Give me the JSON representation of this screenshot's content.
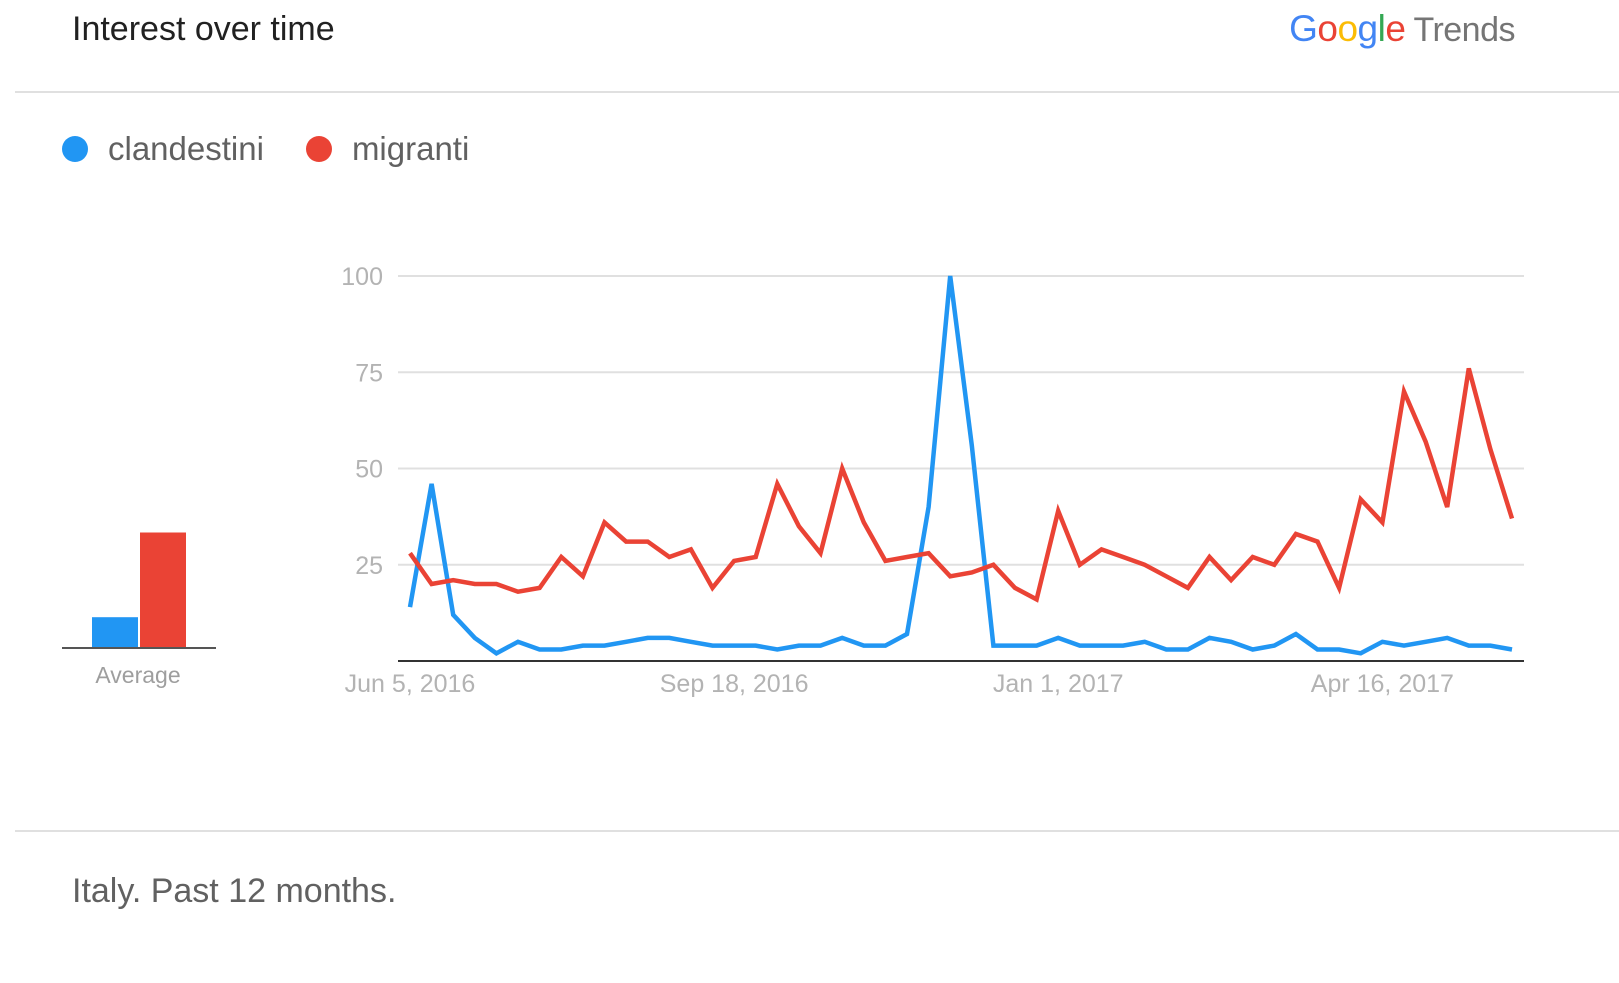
{
  "header": {
    "title": "Interest over time",
    "brand_google": "Google",
    "brand_trends": "Trends"
  },
  "legend": [
    {
      "label": "clandestini",
      "color": "#2196f3"
    },
    {
      "label": "migranti",
      "color": "#ea4335"
    }
  ],
  "footer": {
    "text": "Italy. Past 12 months."
  },
  "chart_data": {
    "type": "line",
    "title": "",
    "xlabel": "",
    "ylabel": "",
    "ylim": [
      0,
      100
    ],
    "yticks": [
      25,
      50,
      75,
      100
    ],
    "grid": true,
    "legend_position": "top-left",
    "x_tick_labels": [
      {
        "label": "Jun 5, 2016",
        "index": 0
      },
      {
        "label": "Sep 18, 2016",
        "index": 15
      },
      {
        "label": "Jan 1, 2017",
        "index": 30
      },
      {
        "label": "Apr 16, 2017",
        "index": 45
      }
    ],
    "series": [
      {
        "name": "clandestini",
        "color": "#2196f3",
        "values": [
          14,
          46,
          12,
          6,
          2,
          5,
          3,
          3,
          4,
          4,
          5,
          6,
          6,
          5,
          4,
          4,
          4,
          3,
          4,
          4,
          6,
          4,
          4,
          7,
          40,
          100,
          56,
          4,
          4,
          4,
          6,
          4,
          4,
          4,
          5,
          3,
          3,
          6,
          5,
          3,
          4,
          7,
          3,
          3,
          2,
          5,
          4,
          5,
          6,
          4,
          4,
          3
        ]
      },
      {
        "name": "migranti",
        "color": "#ea4335",
        "values": [
          28,
          20,
          21,
          20,
          20,
          18,
          19,
          27,
          22,
          36,
          31,
          31,
          27,
          29,
          19,
          26,
          27,
          46,
          35,
          28,
          50,
          36,
          26,
          27,
          28,
          22,
          23,
          25,
          19,
          16,
          39,
          25,
          29,
          27,
          25,
          22,
          19,
          27,
          21,
          27,
          25,
          33,
          31,
          19,
          42,
          36,
          70,
          57,
          40,
          76,
          55,
          37
        ]
      }
    ],
    "average": {
      "label": "Average",
      "values": [
        {
          "name": "clandestini",
          "value": 8
        },
        {
          "name": "migranti",
          "value": 30
        }
      ]
    }
  }
}
